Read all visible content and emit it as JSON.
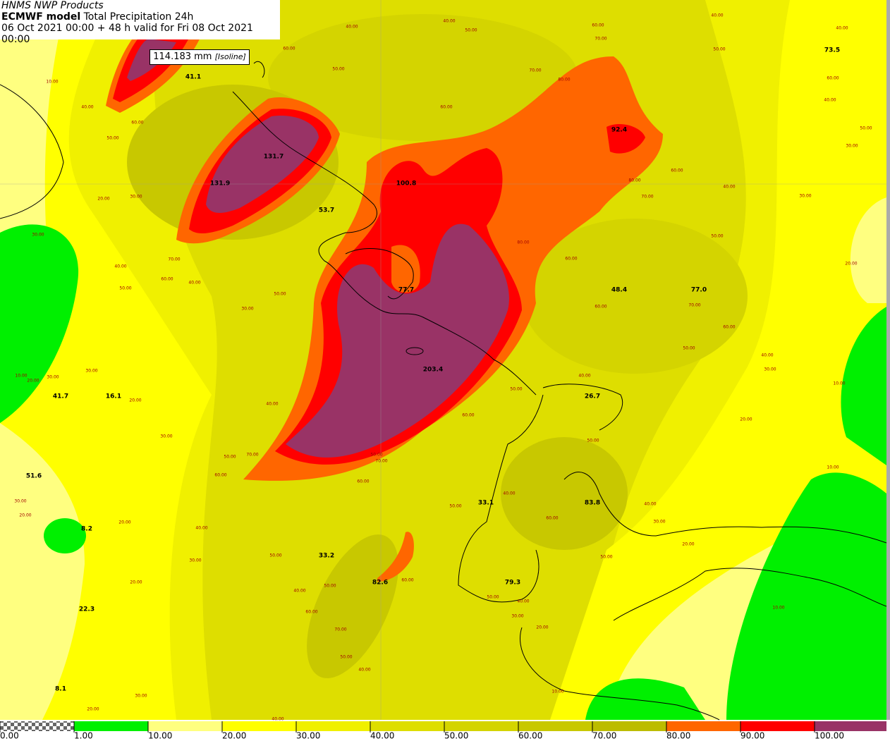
{
  "header": {
    "line1": "HNMS NWP Products",
    "model": "ECMWF model",
    "product": "Total Precipitation 24h",
    "line3": "06 Oct 2021 00:00 + 48 h valid for Fri 08 Oct 2021 00:00"
  },
  "tooltip": {
    "value": "114.183 mm",
    "kind": "[Isoline]"
  },
  "point_values": [
    "41.1",
    "131.7",
    "131.9",
    "53.7",
    "100.8",
    "92.4",
    "73.5",
    "77.7",
    "48.4",
    "77.0",
    "203.4",
    "26.7",
    "41.7",
    "16.1",
    "51.6",
    "33.1",
    "83.8",
    "8.2",
    "33.2",
    "82.6",
    "79.3",
    "22.3",
    "8.1"
  ],
  "contour_labels": [
    "40.00",
    "40.00",
    "50.00",
    "60.00",
    "50.00",
    "70.00",
    "80.00",
    "60.00",
    "70.00",
    "40.00",
    "40.00",
    "50.00",
    "60.00",
    "40.00",
    "50.00",
    "30.00",
    "10.00",
    "40.00",
    "60.00",
    "50.00",
    "60.00",
    "60.00",
    "80.00",
    "70.00",
    "40.00",
    "30.00",
    "20.00",
    "30.00",
    "30.00",
    "50.00",
    "20.00",
    "40.00",
    "70.00",
    "60.00",
    "40.00",
    "50.00",
    "30.00",
    "50.00",
    "80.00",
    "60.00",
    "60.00",
    "60.00",
    "70.00",
    "50.00",
    "40.00",
    "30.00",
    "30.00",
    "10.00",
    "20.00",
    "30.00",
    "20.00",
    "40.00",
    "50.00",
    "60.00",
    "20.00",
    "10.00",
    "30.00",
    "40.00",
    "50.00",
    "70.00",
    "60.00",
    "60.00",
    "50.00",
    "70.00",
    "50.00",
    "10.00",
    "30.00",
    "20.00",
    "20.00",
    "40.00",
    "50.00",
    "40.00",
    "60.00",
    "40.00",
    "30.00",
    "20.00",
    "30.00",
    "50.00",
    "50.00",
    "20.00",
    "50.00",
    "40.00",
    "60.00",
    "60.00",
    "50.00",
    "40.00",
    "30.00",
    "70.00",
    "20.00",
    "10.00",
    "50.00",
    "40.00",
    "30.00",
    "20.00",
    "40.00",
    "10.00"
  ],
  "colorbar": {
    "ticks": [
      {
        "value": 0,
        "label": "0.00"
      },
      {
        "value": 1,
        "label": "1.00"
      },
      {
        "value": 10,
        "label": "10.00"
      },
      {
        "value": 20,
        "label": "20.00"
      },
      {
        "value": 30,
        "label": "30.00"
      },
      {
        "value": 40,
        "label": "40.00"
      },
      {
        "value": 50,
        "label": "50.00"
      },
      {
        "value": 60,
        "label": "60.00"
      },
      {
        "value": 70,
        "label": "70.00"
      },
      {
        "value": 80,
        "label": "80.00"
      },
      {
        "value": 90,
        "label": "90.00"
      },
      {
        "value": 100,
        "label": "100.00"
      }
    ],
    "colors": [
      "#00f000",
      "#ffff80",
      "#ffff00",
      "#f0f000",
      "#dede00",
      "#d4d400",
      "#c8c800",
      "#bcbc00",
      "#ff6600",
      "#ff0000",
      "#993366"
    ]
  }
}
